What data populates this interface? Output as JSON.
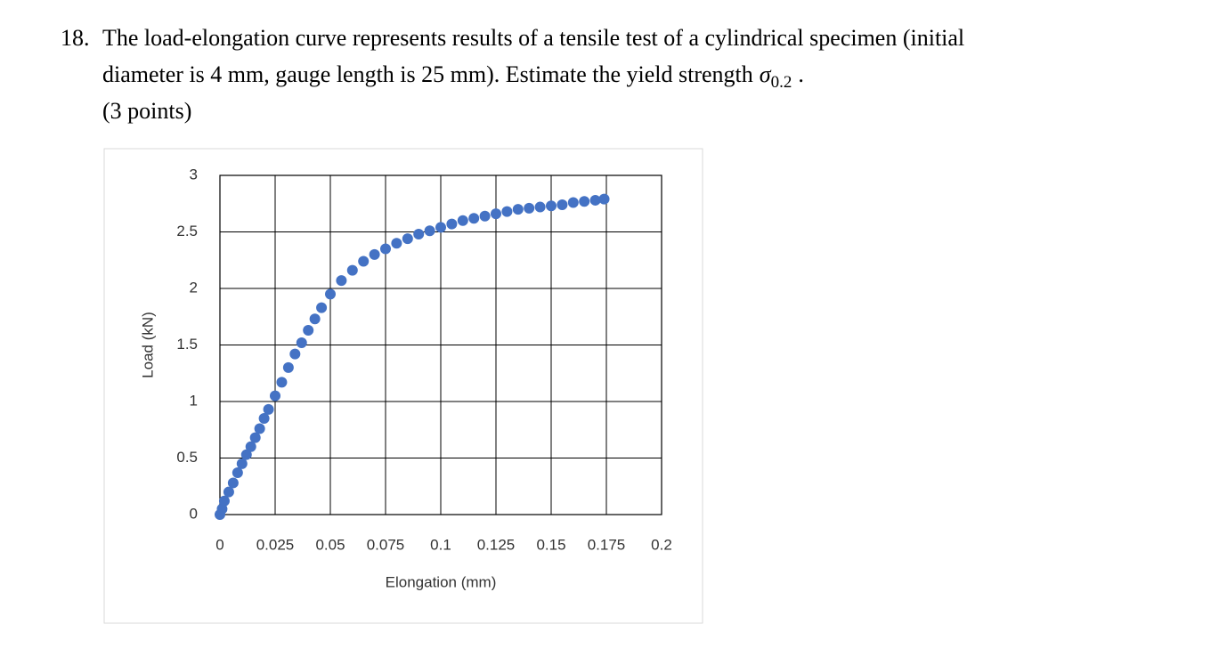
{
  "question": {
    "number": "18.",
    "line1": "The load-elongation curve represents results of a tensile test of a cylindrical specimen (initial",
    "line2": "diameter is 4 mm, gauge length is 25 mm). Estimate the yield strength",
    "symbol": "σ",
    "subscript": "0.2",
    "end": ".",
    "points": "(3 points)"
  },
  "chart_data": {
    "type": "scatter",
    "x_label": "Elongation (mm)",
    "y_label": "Load (kN)",
    "color": "#4472c4",
    "grid": true,
    "xlim": [
      0,
      0.2
    ],
    "xticks": [
      0,
      0.025,
      0.05,
      0.075,
      0.1,
      0.125,
      0.15,
      0.175,
      0.2
    ],
    "ylim": [
      0,
      3
    ],
    "yticks": [
      0,
      0.5,
      1,
      1.5,
      2,
      2.5,
      3
    ],
    "x": [
      0,
      0.001,
      0.002,
      0.004,
      0.006,
      0.008,
      0.01,
      0.012,
      0.014,
      0.016,
      0.018,
      0.02,
      0.022,
      0.025,
      0.028,
      0.031,
      0.034,
      0.037,
      0.04,
      0.043,
      0.046,
      0.05,
      0.055,
      0.06,
      0.065,
      0.07,
      0.075,
      0.08,
      0.085,
      0.09,
      0.095,
      0.1,
      0.105,
      0.11,
      0.115,
      0.12,
      0.125,
      0.13,
      0.135,
      0.14,
      0.145,
      0.15,
      0.155,
      0.16,
      0.165,
      0.17,
      0.174
    ],
    "values": [
      0,
      0.05,
      0.12,
      0.2,
      0.28,
      0.37,
      0.45,
      0.53,
      0.6,
      0.68,
      0.76,
      0.85,
      0.93,
      1.05,
      1.17,
      1.3,
      1.42,
      1.52,
      1.63,
      1.73,
      1.83,
      1.95,
      2.07,
      2.16,
      2.24,
      2.3,
      2.35,
      2.4,
      2.44,
      2.48,
      2.51,
      2.54,
      2.57,
      2.6,
      2.62,
      2.64,
      2.66,
      2.68,
      2.7,
      2.71,
      2.72,
      2.73,
      2.74,
      2.76,
      2.77,
      2.78,
      2.79
    ]
  }
}
